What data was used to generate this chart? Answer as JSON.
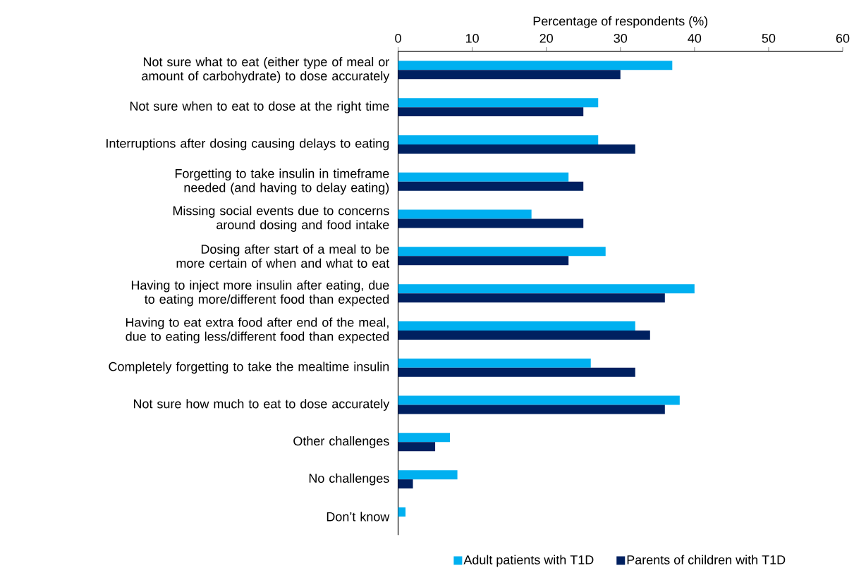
{
  "chart_data": {
    "type": "bar",
    "orientation": "horizontal",
    "xlabel": "Percentage of respondents (%)",
    "categories": [
      "Not sure what to eat (either type of meal or amount of carbohydrate) to dose accurately",
      "Not sure when to eat to dose at the right time",
      "Interruptions after dosing causing delays to eating",
      "Forgetting to take insulin in timeframe needed (and having to delay eating)",
      "Missing social events due to concerns around dosing and food intake",
      "Dosing after start of a meal to be more certain of when and what to eat",
      "Having to inject more insulin after eating, due to eating more/different food than expected",
      "Having to eat extra food after end of the meal, due to eating less/different food than expected",
      "Completely forgetting to take the mealtime insulin",
      "Not sure how much to eat to dose accurately",
      "Other challenges",
      "No challenges",
      "Don’t know"
    ],
    "series": [
      {
        "name": "Adult patients with T1D",
        "color": "#00b0f0",
        "values": [
          37,
          27,
          27,
          23,
          18,
          28,
          40,
          32,
          26,
          38,
          7,
          8,
          1
        ]
      },
      {
        "name": "Parents of children with T1D",
        "color": "#002060",
        "values": [
          30,
          25,
          32,
          25,
          25,
          23,
          36,
          34,
          32,
          36,
          5,
          2,
          0
        ]
      }
    ],
    "xlim": [
      0,
      60
    ],
    "xticks": [
      0,
      10,
      20,
      30,
      40,
      50,
      60
    ],
    "legend": "bottom"
  }
}
